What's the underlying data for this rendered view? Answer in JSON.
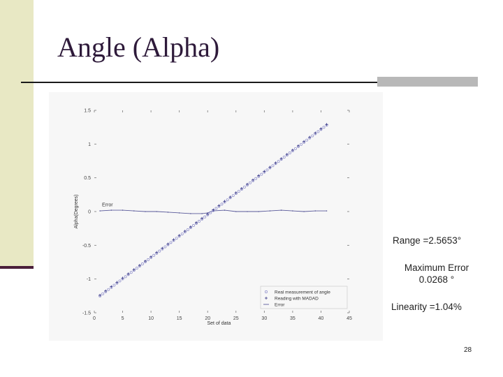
{
  "slide": {
    "title": "Angle (Alpha)",
    "range_text": "Range =2.5653°",
    "max_error_label": "Maximum Error",
    "max_error_value": "0.0268 °",
    "linearity_text": "Linearity =1.04%",
    "page_number": "28"
  },
  "colors": {
    "left_bar": "#e8e8c4",
    "left_bar_edge": "#4a1f3a",
    "title": "#2e1a3a",
    "series_real": "#8888c8",
    "series_madad": "#3a3a88",
    "series_error": "#5a5a9a"
  },
  "chart_data": {
    "type": "scatter",
    "xlabel": "Set of data",
    "ylabel": "Alpha(Degrees)",
    "xlim": [
      0,
      45
    ],
    "ylim": [
      -1.5,
      1.5
    ],
    "x_ticks": [
      "0",
      "5",
      "10",
      "15",
      "20",
      "25",
      "30",
      "35",
      "40",
      "45"
    ],
    "y_ticks": [
      "-1.5",
      "-1",
      "-0.5",
      "0",
      "0.5",
      "1",
      "1.5"
    ],
    "annotation": "Error",
    "legend_position": "bottom-right",
    "grid": false,
    "series": [
      {
        "name": "Real measurement of angle",
        "marker": "circle",
        "x_start": 1,
        "x_end": 41,
        "y_start": -1.25,
        "y_end": 1.28
      },
      {
        "name": "Reading with MADAD",
        "marker": "plus",
        "x_start": 1,
        "x_end": 41,
        "y_start": -1.24,
        "y_end": 1.29
      },
      {
        "name": "Error",
        "marker": "line",
        "x": [
          1,
          3,
          5,
          7,
          9,
          11,
          13,
          15,
          17,
          19,
          20,
          21,
          23,
          25,
          27,
          29,
          31,
          33,
          35,
          37,
          39,
          41
        ],
        "y": [
          0.01,
          0.02,
          0.02,
          0.01,
          0.0,
          0.0,
          -0.01,
          -0.02,
          -0.03,
          -0.03,
          -0.02,
          0.01,
          0.02,
          0.0,
          0.0,
          0.0,
          0.01,
          0.02,
          0.01,
          0.0,
          0.01,
          0.01
        ]
      }
    ]
  }
}
